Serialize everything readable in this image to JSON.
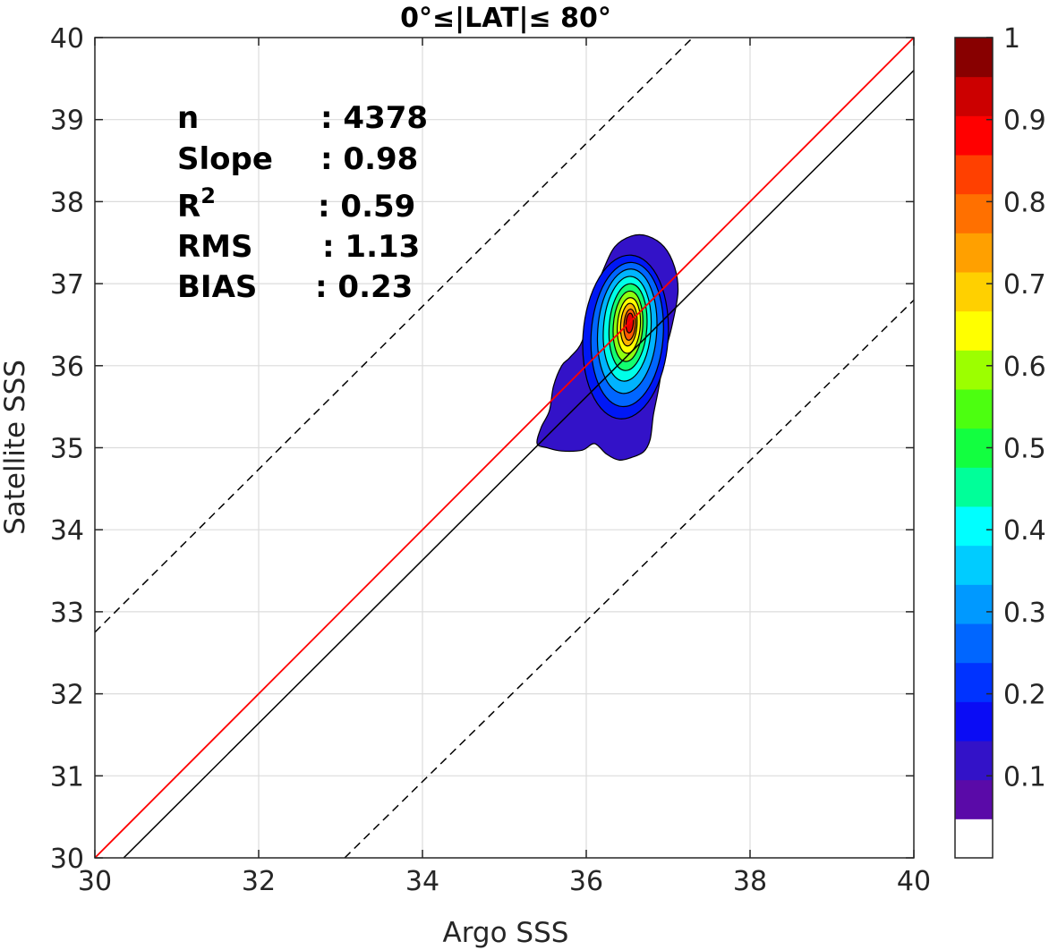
{
  "chart_data": {
    "type": "contour-density",
    "title": "0°≤|LAT|≤ 80°",
    "xlabel": "Argo SSS",
    "ylabel": "Satellite SSS",
    "xlim": [
      30,
      40
    ],
    "ylim": [
      30,
      40
    ],
    "xticks": [
      30,
      32,
      34,
      36,
      38,
      40
    ],
    "yticks": [
      30,
      31,
      32,
      33,
      34,
      35,
      36,
      37,
      38,
      39,
      40
    ],
    "grid": true,
    "stats": {
      "n_label": "n",
      "n_value": ": 4378",
      "slope_label": "Slope",
      "slope_value": ": 0.98",
      "r2_label": "R",
      "r2_sup": "2",
      "r2_value": ": 0.59",
      "rms_label": "RMS",
      "rms_value": ": 1.13",
      "bias_label": "BIAS",
      "bias_value": ": 0.23"
    },
    "lines": {
      "one_to_one": {
        "slope": 1,
        "intercept": 0,
        "color": "#ff0000"
      },
      "fit": {
        "points": [
          [
            30.05,
            29.7
          ],
          [
            40,
            39.6
          ]
        ],
        "color": "#000000"
      },
      "upper_bound": {
        "points": [
          [
            30,
            32.75
          ],
          [
            37.3,
            40
          ]
        ],
        "color": "#000000",
        "dashed": true
      },
      "lower_bound": {
        "points": [
          [
            33.05,
            30
          ],
          [
            40,
            36.8
          ]
        ],
        "color": "#000000",
        "dashed": true
      }
    },
    "contours": {
      "center": [
        36.5,
        36.5
      ],
      "levels": [
        {
          "value": 0.05,
          "color": "#3312c8",
          "outline": [
            [
              35.4,
              35.05
            ],
            [
              35.52,
              35.0
            ],
            [
              35.7,
              34.96
            ],
            [
              35.95,
              34.97
            ],
            [
              36.1,
              35.05
            ],
            [
              36.25,
              34.92
            ],
            [
              36.4,
              34.85
            ],
            [
              36.55,
              34.88
            ],
            [
              36.7,
              34.95
            ],
            [
              36.78,
              35.1
            ],
            [
              36.82,
              35.4
            ],
            [
              36.88,
              35.7
            ],
            [
              36.95,
              36.1
            ],
            [
              37.05,
              36.5
            ],
            [
              37.12,
              36.9
            ],
            [
              37.08,
              37.2
            ],
            [
              36.95,
              37.45
            ],
            [
              36.75,
              37.58
            ],
            [
              36.55,
              37.58
            ],
            [
              36.35,
              37.45
            ],
            [
              36.2,
              37.15
            ],
            [
              36.05,
              36.75
            ],
            [
              35.95,
              36.3
            ],
            [
              35.8,
              36.1
            ],
            [
              35.7,
              36.0
            ],
            [
              35.6,
              35.75
            ],
            [
              35.55,
              35.45
            ],
            [
              35.45,
              35.25
            ]
          ]
        },
        {
          "value": 0.15,
          "color": "#0018f5",
          "cx": 36.48,
          "cy": 36.35,
          "rx": 0.52,
          "ry": 1.0
        },
        {
          "value": 0.22,
          "color": "#0066ff",
          "cx": 36.5,
          "cy": 36.38,
          "rx": 0.44,
          "ry": 0.88
        },
        {
          "value": 0.3,
          "color": "#00b4ff",
          "cx": 36.5,
          "cy": 36.42,
          "rx": 0.36,
          "ry": 0.76
        },
        {
          "value": 0.38,
          "color": "#00ffe8",
          "cx": 36.5,
          "cy": 36.45,
          "rx": 0.29,
          "ry": 0.64
        },
        {
          "value": 0.47,
          "color": "#12ff70",
          "cx": 36.51,
          "cy": 36.47,
          "rx": 0.23,
          "ry": 0.53
        },
        {
          "value": 0.56,
          "color": "#8cff10",
          "cx": 36.51,
          "cy": 36.48,
          "rx": 0.18,
          "ry": 0.43
        },
        {
          "value": 0.65,
          "color": "#ffff00",
          "cx": 36.52,
          "cy": 36.49,
          "rx": 0.14,
          "ry": 0.34
        },
        {
          "value": 0.73,
          "color": "#ffb000",
          "cx": 36.52,
          "cy": 36.5,
          "rx": 0.1,
          "ry": 0.26
        },
        {
          "value": 0.82,
          "color": "#ff5a00",
          "cx": 36.53,
          "cy": 36.5,
          "rx": 0.07,
          "ry": 0.19
        },
        {
          "value": 0.9,
          "color": "#e80000",
          "cx": 36.53,
          "cy": 36.52,
          "rx": 0.045,
          "ry": 0.12
        }
      ]
    },
    "colorbar": {
      "range": [
        0,
        1
      ],
      "tick_labels": [
        "0.1",
        "0.2",
        "0.3",
        "0.4",
        "0.5",
        "0.6",
        "0.7",
        "0.8",
        "0.9",
        "1"
      ],
      "tick_values": [
        0.1,
        0.2,
        0.3,
        0.4,
        0.5,
        0.6,
        0.7,
        0.8,
        0.9,
        1.0
      ],
      "bands": [
        "#ffffff",
        "#5a0aa8",
        "#3312c8",
        "#0a0cf5",
        "#0033ff",
        "#0066ff",
        "#0099ff",
        "#00ccff",
        "#00ffff",
        "#00ff99",
        "#12ff40",
        "#4cff10",
        "#9cff00",
        "#ffff00",
        "#ffd000",
        "#ffa000",
        "#ff7000",
        "#ff4000",
        "#ff0000",
        "#cc0000",
        "#880000"
      ]
    }
  }
}
